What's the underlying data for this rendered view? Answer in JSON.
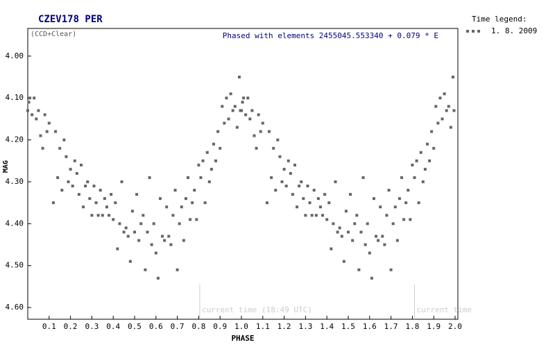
{
  "chart_data": {
    "type": "scatter",
    "title": "CZEV178 PER",
    "subtitle": "(CCD+Clear)",
    "annotation": "Phased with elements 2455045.553340 + 0.079 * E",
    "x_label": "PHASE",
    "y_label": "MAG",
    "legend_title": "Time legend:",
    "current_time_labels": [
      "current time (18:49 UTC)",
      "current time"
    ],
    "current_time_phase": [
      0.805,
      1.81
    ],
    "xlim": [
      0,
      2.013
    ],
    "ylim": [
      4.628,
      3.934
    ],
    "y_inverted": true,
    "xticks": [
      0.1,
      0.2,
      0.3,
      0.4,
      0.5,
      0.6,
      0.7,
      0.8,
      0.9,
      {
        "value": 1,
        "label": "1.0"
      },
      1.1,
      1.2,
      1.3,
      1.4,
      1.5,
      1.6,
      1.7,
      1.8,
      1.9,
      {
        "value": 2,
        "label": "2.0"
      }
    ],
    "yticks": [
      {
        "value": 4,
        "label": "4.00"
      },
      {
        "value": 4.1,
        "label": "4.10"
      },
      {
        "value": 4.2,
        "label": "4.20"
      },
      {
        "value": 4.3,
        "label": "4.30"
      },
      {
        "value": 4.4,
        "label": "4.40"
      },
      {
        "value": 4.5,
        "label": "4.50"
      },
      {
        "value": 4.6,
        "label": "4.60"
      }
    ],
    "series": [
      {
        "name": "1. 8. 2009",
        "color": "#666666",
        "x": [
          0.0,
          0.005,
          0.01,
          0.02,
          0.03,
          0.04,
          0.05,
          0.06,
          0.07,
          0.08,
          0.09,
          0.1,
          0.12,
          0.13,
          0.14,
          0.15,
          0.16,
          0.17,
          0.18,
          0.19,
          0.2,
          0.21,
          0.22,
          0.23,
          0.24,
          0.25,
          0.26,
          0.27,
          0.28,
          0.29,
          0.3,
          0.31,
          0.32,
          0.33,
          0.34,
          0.35,
          0.36,
          0.37,
          0.38,
          0.39,
          0.4,
          0.41,
          0.42,
          0.43,
          0.44,
          0.45,
          0.46,
          0.47,
          0.48,
          0.49,
          0.5,
          0.51,
          0.52,
          0.53,
          0.54,
          0.55,
          0.56,
          0.57,
          0.58,
          0.59,
          0.6,
          0.61,
          0.62,
          0.63,
          0.64,
          0.65,
          0.66,
          0.67,
          0.68,
          0.69,
          0.7,
          0.71,
          0.72,
          0.73,
          0.74,
          0.75,
          0.76,
          0.77,
          0.78,
          0.79,
          0.8,
          0.81,
          0.82,
          0.83,
          0.84,
          0.85,
          0.86,
          0.87,
          0.88,
          0.89,
          0.9,
          0.91,
          0.92,
          0.93,
          0.94,
          0.95,
          0.96,
          0.97,
          0.98,
          0.99,
          0.995,
          1.0,
          1.005,
          1.01,
          1.02,
          1.03,
          1.04,
          1.05,
          1.06,
          1.07,
          1.08,
          1.09,
          1.1,
          1.12,
          1.13,
          1.14,
          1.15,
          1.16,
          1.17,
          1.18,
          1.19,
          1.2,
          1.21,
          1.22,
          1.23,
          1.24,
          1.25,
          1.26,
          1.27,
          1.28,
          1.29,
          1.3,
          1.31,
          1.32,
          1.33,
          1.34,
          1.35,
          1.36,
          1.37,
          1.38,
          1.39,
          1.4,
          1.41,
          1.42,
          1.43,
          1.44,
          1.45,
          1.46,
          1.47,
          1.48,
          1.49,
          1.5,
          1.51,
          1.52,
          1.53,
          1.54,
          1.55,
          1.56,
          1.57,
          1.58,
          1.59,
          1.6,
          1.61,
          1.62,
          1.63,
          1.64,
          1.65,
          1.66,
          1.67,
          1.68,
          1.69,
          1.7,
          1.71,
          1.72,
          1.73,
          1.74,
          1.75,
          1.76,
          1.77,
          1.78,
          1.79,
          1.8,
          1.81,
          1.82,
          1.83,
          1.84,
          1.85,
          1.86,
          1.87,
          1.88,
          1.89,
          1.9,
          1.91,
          1.92,
          1.93,
          1.94,
          1.95,
          1.96,
          1.97,
          1.98,
          1.99,
          1.995
        ],
        "values": [
          4.13,
          4.11,
          4.1,
          4.14,
          4.1,
          4.15,
          4.13,
          4.19,
          4.22,
          4.14,
          4.18,
          4.16,
          4.35,
          4.18,
          4.29,
          4.22,
          4.32,
          4.2,
          4.24,
          4.3,
          4.27,
          4.31,
          4.25,
          4.28,
          4.33,
          4.26,
          4.36,
          4.31,
          4.3,
          4.34,
          4.38,
          4.31,
          4.35,
          4.38,
          4.32,
          4.38,
          4.34,
          4.36,
          4.38,
          4.33,
          4.39,
          4.35,
          4.46,
          4.4,
          4.3,
          4.42,
          4.41,
          4.43,
          4.49,
          4.37,
          4.42,
          4.33,
          4.44,
          4.4,
          4.38,
          4.51,
          4.42,
          4.29,
          4.45,
          4.4,
          4.47,
          4.53,
          4.34,
          4.43,
          4.44,
          4.36,
          4.43,
          4.45,
          4.38,
          4.32,
          4.51,
          4.4,
          4.36,
          4.44,
          4.34,
          4.29,
          4.39,
          4.35,
          4.32,
          4.39,
          4.26,
          4.29,
          4.25,
          4.35,
          4.23,
          4.3,
          4.27,
          4.21,
          4.25,
          4.18,
          4.22,
          4.12,
          4.16,
          4.1,
          4.15,
          4.09,
          4.13,
          4.12,
          4.17,
          4.05,
          4.13,
          4.13,
          4.11,
          4.1,
          4.14,
          4.1,
          4.15,
          4.13,
          4.19,
          4.22,
          4.14,
          4.18,
          4.16,
          4.35,
          4.18,
          4.29,
          4.22,
          4.32,
          4.2,
          4.24,
          4.3,
          4.27,
          4.31,
          4.25,
          4.28,
          4.33,
          4.26,
          4.36,
          4.31,
          4.3,
          4.34,
          4.38,
          4.31,
          4.35,
          4.38,
          4.32,
          4.38,
          4.34,
          4.36,
          4.38,
          4.33,
          4.39,
          4.35,
          4.46,
          4.4,
          4.3,
          4.42,
          4.41,
          4.43,
          4.49,
          4.37,
          4.42,
          4.33,
          4.44,
          4.4,
          4.38,
          4.51,
          4.42,
          4.29,
          4.45,
          4.4,
          4.47,
          4.53,
          4.34,
          4.43,
          4.44,
          4.36,
          4.43,
          4.45,
          4.38,
          4.32,
          4.51,
          4.4,
          4.36,
          4.44,
          4.34,
          4.29,
          4.39,
          4.35,
          4.32,
          4.39,
          4.26,
          4.29,
          4.25,
          4.35,
          4.23,
          4.3,
          4.27,
          4.21,
          4.25,
          4.18,
          4.22,
          4.12,
          4.16,
          4.1,
          4.15,
          4.09,
          4.13,
          4.12,
          4.17,
          4.05,
          4.13
        ]
      }
    ]
  }
}
